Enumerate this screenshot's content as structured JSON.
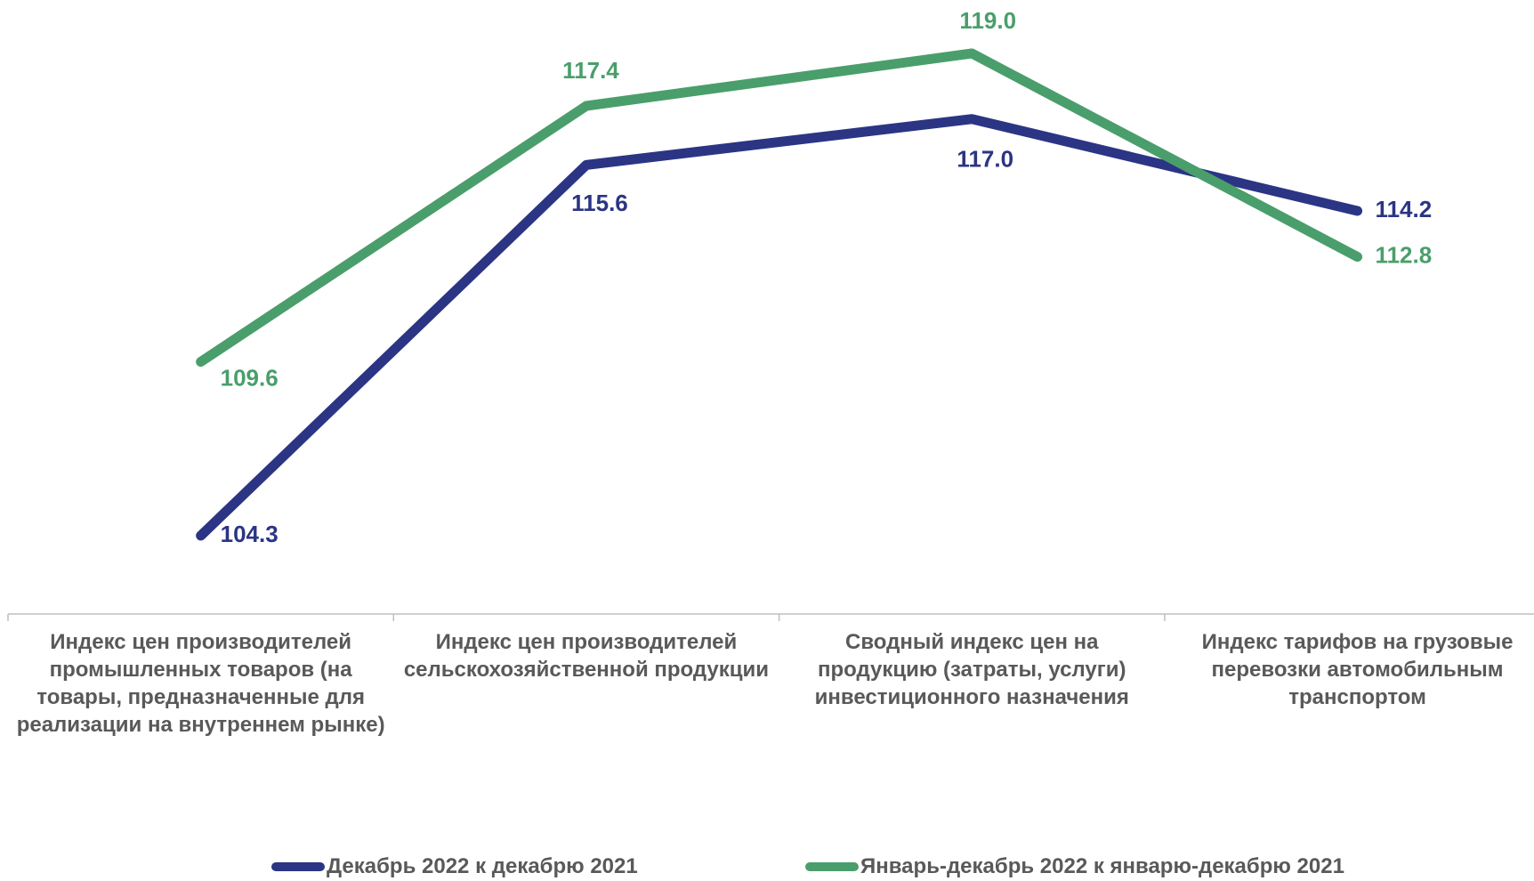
{
  "chart_data": {
    "type": "line",
    "categories": [
      "Индекс цен производителей промышленных товаров (на товары, предназначенные для реализации на внутреннем рынке)",
      "Индекс цен производителей сельскохозяйственной продукции",
      "Сводный индекс цен на продукцию (затраты, услуги) инвестиционного назначения",
      "Индекс тарифов на грузовые перевозки автомобильным транспортом"
    ],
    "series": [
      {
        "name": "Декабрь 2022 к декабрю 2021",
        "color": "#2b3584",
        "values": [
          104.3,
          115.6,
          117.0,
          114.2
        ],
        "value_labels": [
          "104.3",
          "115.6",
          "117.0",
          "114.2"
        ]
      },
      {
        "name": "Январь-декабрь 2022 к январю-декабрю 2021",
        "color": "#4a9e6b",
        "values": [
          109.6,
          117.4,
          119.0,
          112.8
        ],
        "value_labels": [
          "109.6",
          "117.4",
          "119.0",
          "112.8"
        ]
      }
    ],
    "legend": "bottom"
  }
}
